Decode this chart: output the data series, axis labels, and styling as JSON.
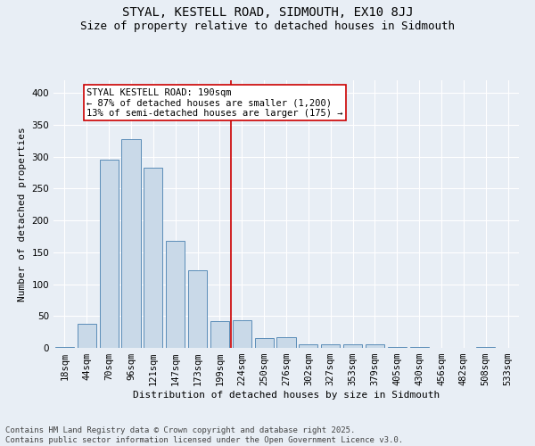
{
  "title": "STYAL, KESTELL ROAD, SIDMOUTH, EX10 8JJ",
  "subtitle": "Size of property relative to detached houses in Sidmouth",
  "xlabel": "Distribution of detached houses by size in Sidmouth",
  "ylabel": "Number of detached properties",
  "categories": [
    "18sqm",
    "44sqm",
    "70sqm",
    "96sqm",
    "121sqm",
    "147sqm",
    "173sqm",
    "199sqm",
    "224sqm",
    "250sqm",
    "276sqm",
    "302sqm",
    "327sqm",
    "353sqm",
    "379sqm",
    "405sqm",
    "430sqm",
    "456sqm",
    "482sqm",
    "508sqm",
    "533sqm"
  ],
  "values": [
    2,
    38,
    295,
    328,
    283,
    168,
    122,
    42,
    44,
    15,
    17,
    5,
    5,
    5,
    6,
    1,
    1,
    0,
    0,
    2,
    0
  ],
  "bar_color": "#c9d9e8",
  "bar_edge_color": "#5b8db8",
  "background_color": "#e8eef5",
  "grid_color": "#ffffff",
  "vline_x": 7.5,
  "vline_color": "#cc0000",
  "annotation_title": "STYAL KESTELL ROAD: 190sqm",
  "annotation_line1": "← 87% of detached houses are smaller (1,200)",
  "annotation_line2": "13% of semi-detached houses are larger (175) →",
  "annotation_box_color": "#ffffff",
  "annotation_border_color": "#cc0000",
  "ylim": [
    0,
    420
  ],
  "yticks": [
    0,
    50,
    100,
    150,
    200,
    250,
    300,
    350,
    400
  ],
  "footnote": "Contains HM Land Registry data © Crown copyright and database right 2025.\nContains public sector information licensed under the Open Government Licence v3.0.",
  "title_fontsize": 10,
  "subtitle_fontsize": 9,
  "axis_label_fontsize": 8,
  "tick_fontsize": 7.5,
  "annotation_fontsize": 7.5,
  "footnote_fontsize": 6.5
}
